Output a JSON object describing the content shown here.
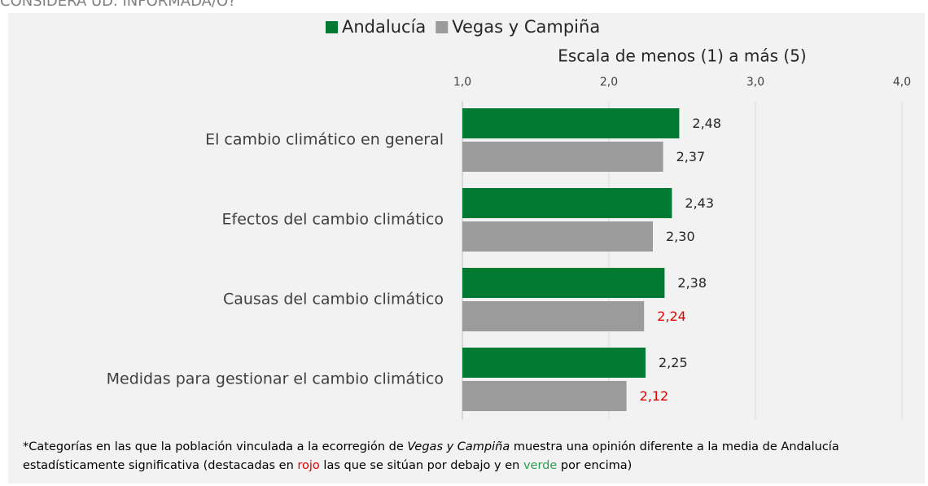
{
  "page_heading": "CONSIDERA UD. INFORMADA/O?",
  "chart_data": {
    "type": "hbar",
    "x_label": "Escala de menos (1) a más (5)",
    "categories": [
      "El cambio climático en general",
      "Efectos del cambio climático",
      "Causas del cambio climático",
      "Medidas para gestionar el cambio climático"
    ],
    "series": [
      {
        "name": "Andalucía",
        "color": "#007a33",
        "values": [
          2.48,
          2.43,
          2.38,
          2.25
        ],
        "value_labels": [
          "2,48",
          "2,43",
          "2,38",
          "2,25"
        ],
        "label_colors": [
          "#262626",
          "#262626",
          "#262626",
          "#262626"
        ]
      },
      {
        "name": "Vegas y Campiña",
        "color": "#9b9b9b",
        "values": [
          2.37,
          2.3,
          2.24,
          2.12
        ],
        "value_labels": [
          "2,37",
          "2,30",
          "2,24",
          "2,12"
        ],
        "label_colors": [
          "#262626",
          "#262626",
          "#e00000",
          "#e00000"
        ]
      }
    ],
    "xlim": [
      1,
      4
    ],
    "xticks": [
      {
        "value": 1,
        "label": "1,0"
      },
      {
        "value": 2,
        "label": "2,0"
      },
      {
        "value": 3,
        "label": "3,0"
      },
      {
        "value": 4,
        "label": "4,0"
      }
    ],
    "grid": true,
    "legend": "top"
  },
  "footnote": [
    {
      "text": "*Categorías en las que la población vinculada a la ecorregión de ",
      "style": "normal"
    },
    {
      "text": "Vegas y Campiña",
      "style": "italic"
    },
    {
      "text": " muestra una opinión diferente a la media de Andalucía estadísticamente significativa (destacadas en ",
      "style": "normal"
    },
    {
      "text": "rojo",
      "style": "normal",
      "color": "#e00000"
    },
    {
      "text": " las que se sitúan por debajo y en ",
      "style": "normal"
    },
    {
      "text": "verde",
      "style": "normal",
      "color": "#2e9e4f"
    },
    {
      "text": " por encima)",
      "style": "normal"
    }
  ]
}
